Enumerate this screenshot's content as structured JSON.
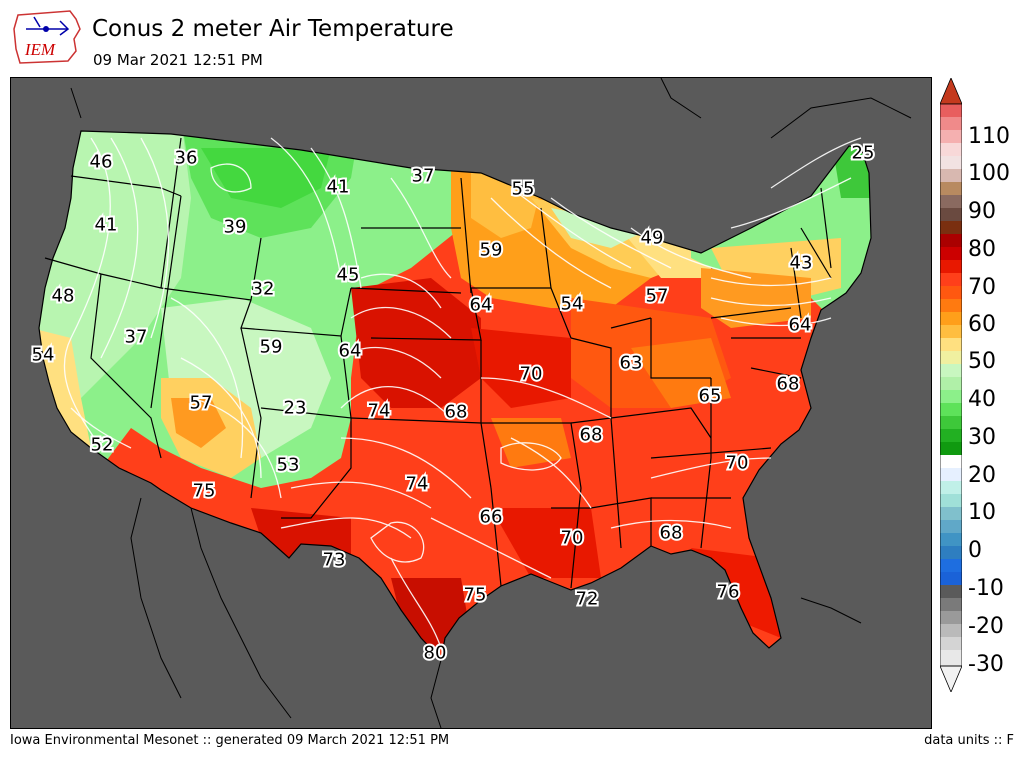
{
  "header": {
    "logo_text": "IEM",
    "title": "Conus 2 meter Air Temperature",
    "subtitle": "09 Mar 2021 12:51 PM"
  },
  "footer": {
    "left": "Iowa Environmental Mesonet :: generated 09 March 2021 12:51 PM",
    "right": "data units :: F"
  },
  "colorbar": {
    "ticks": [
      "110",
      "100",
      "90",
      "80",
      "70",
      "60",
      "50",
      "40",
      "30",
      "20",
      "10",
      "0",
      "-10",
      "-20",
      "-30"
    ],
    "tick_values": [
      110,
      100,
      90,
      80,
      70,
      60,
      50,
      40,
      30,
      20,
      10,
      0,
      -10,
      -20,
      -30
    ],
    "min": -35,
    "max": 120
  },
  "map": {
    "background_color": "#5a5a5a",
    "labels": [
      {
        "text": "46",
        "value": 46
      },
      {
        "text": "36",
        "value": 36
      },
      {
        "text": "37",
        "value": 37
      },
      {
        "text": "55",
        "value": 55
      },
      {
        "text": "25",
        "value": 25
      },
      {
        "text": "41",
        "value": 41
      },
      {
        "text": "41",
        "value": 41
      },
      {
        "text": "39",
        "value": 39
      },
      {
        "text": "59",
        "value": 59
      },
      {
        "text": "49",
        "value": 49
      },
      {
        "text": "43",
        "value": 43
      },
      {
        "text": "45",
        "value": 45
      },
      {
        "text": "48",
        "value": 48
      },
      {
        "text": "32",
        "value": 32
      },
      {
        "text": "64",
        "value": 64
      },
      {
        "text": "54",
        "value": 54
      },
      {
        "text": "57",
        "value": 57
      },
      {
        "text": "64",
        "value": 64
      },
      {
        "text": "37",
        "value": 37
      },
      {
        "text": "59",
        "value": 59
      },
      {
        "text": "64",
        "value": 64
      },
      {
        "text": "54",
        "value": 54
      },
      {
        "text": "63",
        "value": 63
      },
      {
        "text": "70",
        "value": 70
      },
      {
        "text": "68",
        "value": 68
      },
      {
        "text": "65",
        "value": 65
      },
      {
        "text": "57",
        "value": 57
      },
      {
        "text": "74",
        "value": 74
      },
      {
        "text": "68",
        "value": 68
      },
      {
        "text": "23",
        "value": 23
      },
      {
        "text": "52",
        "value": 52
      },
      {
        "text": "68",
        "value": 68
      },
      {
        "text": "70",
        "value": 70
      },
      {
        "text": "53",
        "value": 53
      },
      {
        "text": "75",
        "value": 75
      },
      {
        "text": "74",
        "value": 74
      },
      {
        "text": "66",
        "value": 66
      },
      {
        "text": "70",
        "value": 70
      },
      {
        "text": "68",
        "value": 68
      },
      {
        "text": "73",
        "value": 73
      },
      {
        "text": "75",
        "value": 75
      },
      {
        "text": "72",
        "value": 72
      },
      {
        "text": "76",
        "value": 76
      },
      {
        "text": "80",
        "value": 80
      }
    ]
  }
}
